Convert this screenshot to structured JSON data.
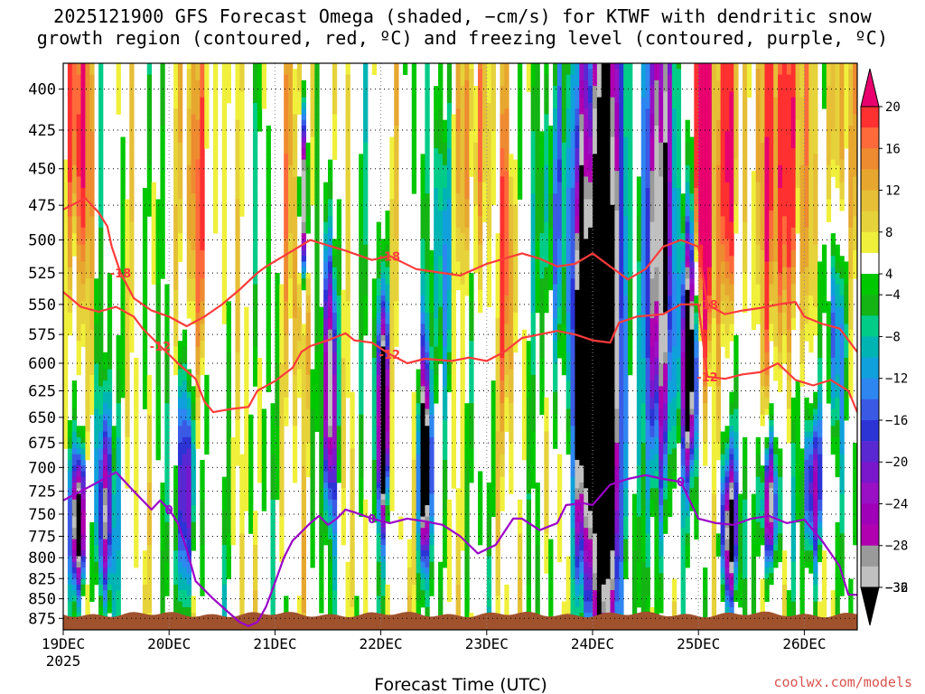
{
  "title": {
    "line1": "2025121900 GFS Forecast Omega (shaded, −cm/s) for KTWF with dendritic snow",
    "line2": "growth region (contoured, red, ºC) and freezing level (contoured, purple, ºC)"
  },
  "credit": "coolwx.com/models",
  "chart_data": {
    "type": "heatmap",
    "title": "2025121900 GFS Forecast Omega (shaded, −cm/s) for KTWF with dendritic snow growth region (contoured, red, ºC) and freezing level (contoured, purple, ºC)",
    "xlabel": "Forecast Time (UTC)",
    "ylabel": "",
    "xlim_hours": [
      0,
      180
    ],
    "x_ticks": [
      {
        "hour": 0,
        "label": "19DEC",
        "sub": "2025"
      },
      {
        "hour": 24,
        "label": "20DEC"
      },
      {
        "hour": 48,
        "label": "21DEC"
      },
      {
        "hour": 72,
        "label": "22DEC"
      },
      {
        "hour": 96,
        "label": "23DEC"
      },
      {
        "hour": 120,
        "label": "24DEC"
      },
      {
        "hour": 144,
        "label": "25DEC"
      },
      {
        "hour": 168,
        "label": "26DEC"
      }
    ],
    "y_axis": {
      "type": "pressure",
      "range_hpa": [
        890,
        385
      ],
      "ticks": [
        400,
        425,
        450,
        475,
        500,
        525,
        550,
        575,
        600,
        625,
        650,
        675,
        700,
        725,
        750,
        775,
        800,
        825,
        850,
        875
      ]
    },
    "colorbar": {
      "labels": [
        "20",
        "16",
        "12",
        "8",
        "4",
        "−4",
        "−8",
        "−12",
        "−16",
        "−20",
        "−24",
        "−28",
        "−32",
        "−36"
      ],
      "bins": [
        {
          "color": "#e8006e",
          "range": [
            ">20"
          ]
        },
        {
          "color": "#ff3030",
          "range": [
            16,
            20
          ]
        },
        {
          "color": "#ff6a3a",
          "range": [
            14,
            16
          ]
        },
        {
          "color": "#ee8a30",
          "range": [
            12,
            14
          ]
        },
        {
          "color": "#e7a72f",
          "range": [
            10,
            12
          ]
        },
        {
          "color": "#e6bf37",
          "range": [
            8,
            10
          ]
        },
        {
          "color": "#e6d23a",
          "range": [
            6,
            8
          ]
        },
        {
          "color": "#f0f03c",
          "range": [
            4,
            6
          ]
        },
        {
          "color": "#ffffff",
          "range": [
            -4,
            4
          ]
        },
        {
          "color": "#00c800",
          "range": [
            -6,
            -4
          ]
        },
        {
          "color": "#14b414",
          "range": [
            -8,
            -6
          ]
        },
        {
          "color": "#00cc88",
          "range": [
            -10,
            -8
          ]
        },
        {
          "color": "#00b4b4",
          "range": [
            -12,
            -10
          ]
        },
        {
          "color": "#10a0dc",
          "range": [
            -14,
            -12
          ]
        },
        {
          "color": "#2e86f0",
          "range": [
            -16,
            -14
          ]
        },
        {
          "color": "#3a5ae6",
          "range": [
            -18,
            -16
          ]
        },
        {
          "color": "#2c34d6",
          "range": [
            -20,
            -18
          ]
        },
        {
          "color": "#5a28d2",
          "range": [
            -22,
            -20
          ]
        },
        {
          "color": "#7a16cc",
          "range": [
            -24,
            -22
          ]
        },
        {
          "color": "#9a10c4",
          "range": [
            -26,
            -24
          ]
        },
        {
          "color": "#a000b8",
          "range": [
            -28,
            -26
          ]
        },
        {
          "color": "#b000b0",
          "range": [
            -30,
            -28
          ]
        },
        {
          "color": "#9a9a9a",
          "range": [
            -32,
            -30
          ]
        },
        {
          "color": "#c0c0c0",
          "range": [
            -36,
            -32
          ]
        },
        {
          "color": "#000000",
          "range": [
            "<-36"
          ]
        }
      ]
    },
    "contours": {
      "red": [
        {
          "level": -18,
          "label": "-18",
          "points": [
            [
              0,
              478
            ],
            [
              5,
              470
            ],
            [
              8,
              480
            ],
            [
              10,
              490
            ],
            [
              11,
              505
            ],
            [
              13,
              525
            ],
            [
              16,
              545
            ],
            [
              20,
              555
            ],
            [
              24,
              560
            ],
            [
              28,
              568
            ],
            [
              32,
              560
            ],
            [
              36,
              550
            ],
            [
              40,
              538
            ],
            [
              44,
              525
            ],
            [
              46,
              520
            ],
            [
              48,
              516
            ],
            [
              52,
              508
            ],
            [
              56,
              500
            ],
            [
              60,
              504
            ],
            [
              64,
              508
            ],
            [
              70,
              515
            ],
            [
              74,
              512
            ],
            [
              80,
              522
            ],
            [
              84,
              524
            ],
            [
              90,
              527
            ],
            [
              96,
              518
            ],
            [
              100,
              514
            ],
            [
              104,
              510
            ],
            [
              108,
              514
            ],
            [
              112,
              520
            ],
            [
              116,
              518
            ],
            [
              120,
              510
            ],
            [
              124,
              520
            ],
            [
              128,
              530
            ],
            [
              132,
              522
            ],
            [
              136,
              505
            ],
            [
              140,
              500
            ],
            [
              144,
              505
            ],
            [
              146,
              550
            ],
            [
              150,
              558
            ],
            [
              154,
              555
            ],
            [
              158,
              553
            ],
            [
              162,
              550
            ],
            [
              166,
              548
            ],
            [
              168,
              560
            ],
            [
              172,
              566
            ],
            [
              176,
              570
            ],
            [
              180,
              590
            ]
          ]
        },
        {
          "level": -12,
          "label": "-12",
          "points": [
            [
              0,
              540
            ],
            [
              4,
              552
            ],
            [
              8,
              556
            ],
            [
              12,
              552
            ],
            [
              16,
              560
            ],
            [
              18,
              570
            ],
            [
              22,
              585
            ],
            [
              26,
              600
            ],
            [
              30,
              614
            ],
            [
              32,
              635
            ],
            [
              34,
              645
            ],
            [
              38,
              642
            ],
            [
              42,
              640
            ],
            [
              44,
              625
            ],
            [
              48,
              616
            ],
            [
              52,
              604
            ],
            [
              54,
              590
            ],
            [
              56,
              585
            ],
            [
              60,
              580
            ],
            [
              64,
              574
            ],
            [
              66,
              580
            ],
            [
              70,
              582
            ],
            [
              74,
              592
            ],
            [
              78,
              600
            ],
            [
              82,
              596
            ],
            [
              88,
              598
            ],
            [
              92,
              595
            ],
            [
              96,
              598
            ],
            [
              100,
              590
            ],
            [
              104,
              578
            ],
            [
              108,
              575
            ],
            [
              112,
              572
            ],
            [
              116,
              575
            ],
            [
              120,
              580
            ],
            [
              124,
              582
            ],
            [
              126,
              565
            ],
            [
              130,
              560
            ],
            [
              136,
              558
            ],
            [
              140,
              550
            ],
            [
              144,
              550
            ],
            [
              146,
              612
            ],
            [
              150,
              614
            ],
            [
              154,
              610
            ],
            [
              158,
              608
            ],
            [
              162,
              600
            ],
            [
              166,
              615
            ],
            [
              170,
              620
            ],
            [
              174,
              615
            ],
            [
              178,
              625
            ],
            [
              180,
              645
            ]
          ]
        }
      ],
      "purple": [
        {
          "level": 0,
          "label": "0",
          "points": [
            [
              0,
              735
            ],
            [
              4,
              725
            ],
            [
              8,
              715
            ],
            [
              12,
              705
            ],
            [
              16,
              725
            ],
            [
              20,
              745
            ],
            [
              22,
              735
            ],
            [
              24,
              745
            ],
            [
              26,
              760
            ],
            [
              28,
              790
            ],
            [
              30,
              828
            ],
            [
              34,
              850
            ],
            [
              38,
              870
            ],
            [
              40,
              880
            ],
            [
              42,
              885
            ],
            [
              44,
              880
            ],
            [
              46,
              860
            ],
            [
              48,
              830
            ],
            [
              50,
              800
            ],
            [
              52,
              780
            ],
            [
              54,
              770
            ],
            [
              56,
              760
            ],
            [
              58,
              752
            ],
            [
              60,
              762
            ],
            [
              62,
              755
            ],
            [
              64,
              745
            ],
            [
              66,
              748
            ],
            [
              70,
              755
            ],
            [
              74,
              760
            ],
            [
              78,
              755
            ],
            [
              82,
              758
            ],
            [
              86,
              762
            ],
            [
              90,
              775
            ],
            [
              94,
              795
            ],
            [
              96,
              790
            ],
            [
              98,
              785
            ],
            [
              100,
              770
            ],
            [
              102,
              755
            ],
            [
              104,
              755
            ],
            [
              108,
              768
            ],
            [
              112,
              760
            ],
            [
              114,
              740
            ],
            [
              118,
              738
            ],
            [
              120,
              740
            ],
            [
              124,
              718
            ],
            [
              128,
              712
            ],
            [
              132,
              708
            ],
            [
              136,
              712
            ],
            [
              140,
              715
            ],
            [
              144,
              755
            ],
            [
              148,
              760
            ],
            [
              152,
              762
            ],
            [
              156,
              755
            ],
            [
              160,
              752
            ],
            [
              164,
              760
            ],
            [
              168,
              756
            ],
            [
              172,
              780
            ],
            [
              176,
              810
            ],
            [
              178,
              845
            ],
            [
              180,
              845
            ]
          ]
        }
      ]
    }
  }
}
